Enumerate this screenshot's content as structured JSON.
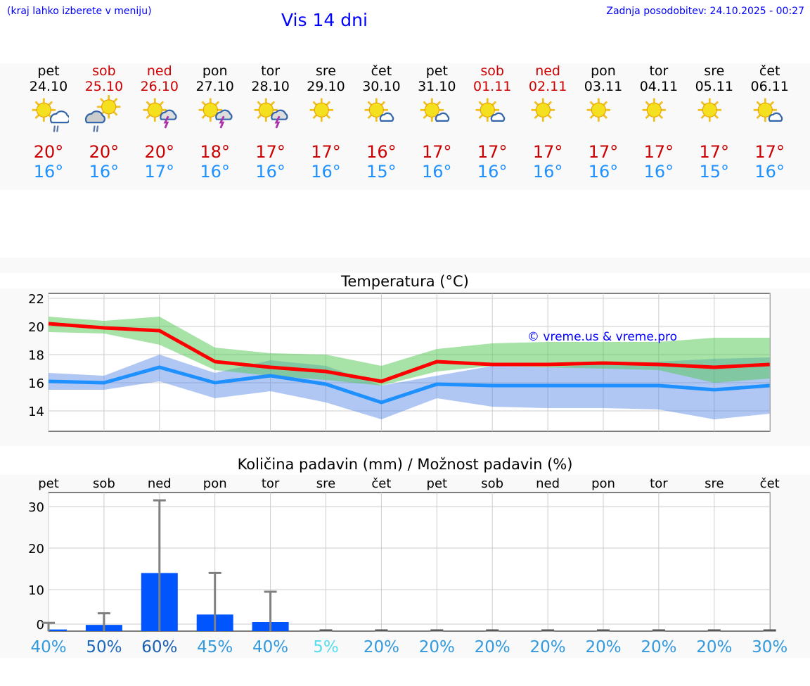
{
  "header": {
    "hint": "(kraj lahko izberete v meniju)",
    "title": "Vis 14 dni",
    "updated": "Zadnja posodobitev: 24.10.2025 - 00:27"
  },
  "days": [
    {
      "name": "pet",
      "date": "24.10",
      "weekend": false,
      "icon": "sun-cloud-rain-icon",
      "max": "20°",
      "min": "16°"
    },
    {
      "name": "sob",
      "date": "25.10",
      "weekend": true,
      "icon": "sun-dark-cloud-rain-icon",
      "max": "20°",
      "min": "16°"
    },
    {
      "name": "ned",
      "date": "26.10",
      "weekend": true,
      "icon": "sun-thunderstorm-icon",
      "max": "20°",
      "min": "17°"
    },
    {
      "name": "pon",
      "date": "27.10",
      "weekend": false,
      "icon": "sun-thunderstorm-icon",
      "max": "18°",
      "min": "16°"
    },
    {
      "name": "tor",
      "date": "28.10",
      "weekend": false,
      "icon": "sun-thunderstorm-icon",
      "max": "17°",
      "min": "16°"
    },
    {
      "name": "sre",
      "date": "29.10",
      "weekend": false,
      "icon": "sun-icon",
      "max": "17°",
      "min": "16°"
    },
    {
      "name": "čet",
      "date": "30.10",
      "weekend": false,
      "icon": "sun-small-cloud-icon",
      "max": "16°",
      "min": "15°"
    },
    {
      "name": "pet",
      "date": "31.10",
      "weekend": false,
      "icon": "sun-small-cloud-icon",
      "max": "17°",
      "min": "16°"
    },
    {
      "name": "sob",
      "date": "01.11",
      "weekend": true,
      "icon": "sun-small-cloud-icon",
      "max": "17°",
      "min": "16°"
    },
    {
      "name": "ned",
      "date": "02.11",
      "weekend": true,
      "icon": "sun-icon",
      "max": "17°",
      "min": "16°"
    },
    {
      "name": "pon",
      "date": "03.11",
      "weekend": false,
      "icon": "sun-icon",
      "max": "17°",
      "min": "16°"
    },
    {
      "name": "tor",
      "date": "04.11",
      "weekend": false,
      "icon": "sun-icon",
      "max": "17°",
      "min": "16°"
    },
    {
      "name": "sre",
      "date": "05.11",
      "weekend": false,
      "icon": "sun-icon",
      "max": "17°",
      "min": "15°"
    },
    {
      "name": "čet",
      "date": "06.11",
      "weekend": false,
      "icon": "sun-small-cloud-icon",
      "max": "17°",
      "min": "16°"
    }
  ],
  "colors": {
    "weekend": "#cc0000",
    "max": "#ff0000",
    "min": "#1e90ff",
    "bar": "#0055ff"
  },
  "chart_data": [
    {
      "type": "line",
      "title": "Temperatura (°C)",
      "watermark": "© vreme.us & vreme.pro",
      "ylim": [
        12.5,
        22.5
      ],
      "yticks": [
        14,
        16,
        18,
        20,
        22
      ],
      "series": [
        {
          "name": "max",
          "values": [
            20.2,
            19.9,
            19.7,
            17.5,
            17.1,
            16.8,
            16.1,
            17.5,
            17.3,
            17.3,
            17.4,
            17.3,
            17.1,
            17.3
          ],
          "band_hi": [
            20.7,
            20.4,
            20.7,
            18.5,
            18.1,
            18.0,
            17.2,
            18.4,
            18.8,
            18.9,
            18.9,
            18.9,
            19.2,
            19.2
          ],
          "band_lo": [
            19.6,
            19.5,
            18.7,
            16.9,
            16.5,
            16.2,
            15.8,
            16.8,
            17.2,
            17.1,
            17.0,
            16.9,
            16.0,
            16.3
          ]
        },
        {
          "name": "min",
          "values": [
            16.1,
            16.0,
            17.1,
            16.0,
            16.5,
            15.9,
            14.6,
            15.9,
            15.8,
            15.8,
            15.8,
            15.8,
            15.5,
            15.8
          ],
          "band_hi": [
            16.7,
            16.5,
            18.0,
            16.7,
            17.6,
            17.2,
            15.8,
            16.5,
            17.2,
            17.1,
            17.3,
            17.5,
            17.7,
            17.8
          ],
          "band_lo": [
            15.5,
            15.5,
            16.1,
            14.9,
            15.4,
            14.6,
            13.4,
            14.9,
            14.3,
            14.2,
            14.2,
            14.1,
            13.4,
            13.8
          ]
        }
      ]
    },
    {
      "type": "bar",
      "title": "Količina padavin (mm) / Možnost padavin (%)",
      "categories": [
        "pet",
        "sob",
        "ned",
        "pon",
        "tor",
        "sre",
        "čet",
        "pet",
        "sob",
        "ned",
        "pon",
        "tor",
        "sre",
        "čet"
      ],
      "ylim": [
        0,
        33.5
      ],
      "yticks": [
        0,
        10,
        20,
        30
      ],
      "values": [
        0.4,
        1.5,
        14,
        4,
        2.2,
        0,
        0,
        0,
        0,
        0,
        0,
        0,
        0,
        0
      ],
      "max": [
        2,
        4.3,
        31.5,
        14,
        9.5,
        0,
        0,
        0,
        0,
        0,
        0,
        0,
        0,
        0
      ],
      "chance": [
        "40%",
        "50%",
        "60%",
        "45%",
        "40%",
        "5%",
        "20%",
        "20%",
        "20%",
        "20%",
        "20%",
        "20%",
        "20%",
        "30%"
      ],
      "chance_colors": [
        "#3399dd",
        "#1a66bb",
        "#1a5fb0",
        "#3399dd",
        "#3399dd",
        "#55ddee",
        "#3399dd",
        "#3399dd",
        "#3399dd",
        "#3399dd",
        "#3399dd",
        "#3399dd",
        "#3399dd",
        "#3399dd"
      ]
    }
  ]
}
